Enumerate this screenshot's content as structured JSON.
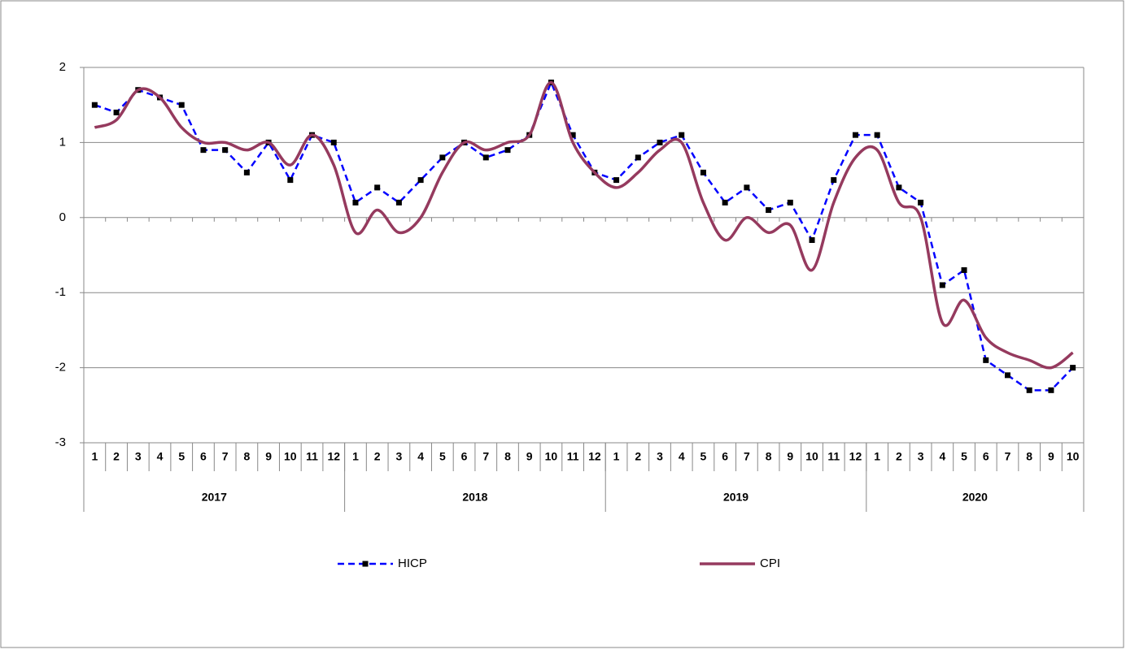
{
  "chart_data": {
    "type": "line",
    "categories": [
      "1",
      "2",
      "3",
      "4",
      "5",
      "6",
      "7",
      "8",
      "9",
      "10",
      "11",
      "12",
      "1",
      "2",
      "3",
      "4",
      "5",
      "6",
      "7",
      "8",
      "9",
      "10",
      "11",
      "12",
      "1",
      "2",
      "3",
      "4",
      "5",
      "6",
      "7",
      "8",
      "9",
      "10",
      "11",
      "12",
      "1",
      "2",
      "3",
      "4",
      "5",
      "6",
      "7",
      "8",
      "9",
      "10"
    ],
    "x_groups": [
      "2017",
      "2018",
      "2019",
      "2020"
    ],
    "series": [
      {
        "name": "HICP",
        "color": "#0000ff",
        "dashed": true,
        "markers": true,
        "smooth": false,
        "values": [
          1.5,
          1.4,
          1.7,
          1.6,
          1.5,
          0.9,
          0.9,
          0.6,
          1.0,
          0.5,
          1.1,
          1.0,
          0.2,
          0.4,
          0.2,
          0.5,
          0.8,
          1.0,
          0.8,
          0.9,
          1.1,
          1.8,
          1.1,
          0.6,
          0.5,
          0.8,
          1.0,
          1.1,
          0.6,
          0.2,
          0.4,
          0.1,
          0.2,
          -0.3,
          0.5,
          1.1,
          1.1,
          0.4,
          0.2,
          -0.9,
          -0.7,
          -1.9,
          -2.1,
          -2.3,
          -2.3,
          -2.0
        ]
      },
      {
        "name": "CPI",
        "color": "#953a5e",
        "dashed": false,
        "markers": false,
        "smooth": true,
        "values": [
          1.2,
          1.3,
          1.7,
          1.6,
          1.2,
          1.0,
          1.0,
          0.9,
          1.0,
          0.7,
          1.1,
          0.7,
          -0.2,
          0.1,
          -0.2,
          0.0,
          0.6,
          1.0,
          0.9,
          1.0,
          1.1,
          1.8,
          1.0,
          0.6,
          0.4,
          0.6,
          0.9,
          1.0,
          0.2,
          -0.3,
          0.0,
          -0.2,
          -0.1,
          -0.7,
          0.2,
          0.8,
          0.9,
          0.2,
          0.0,
          -1.4,
          -1.1,
          -1.6,
          -1.8,
          -1.9,
          -2.0,
          -1.8
        ]
      }
    ],
    "ylim": [
      -3,
      2
    ],
    "yticks": [
      -3,
      -2,
      -1,
      0,
      1,
      2
    ],
    "grid": true,
    "legend": "bottom"
  }
}
